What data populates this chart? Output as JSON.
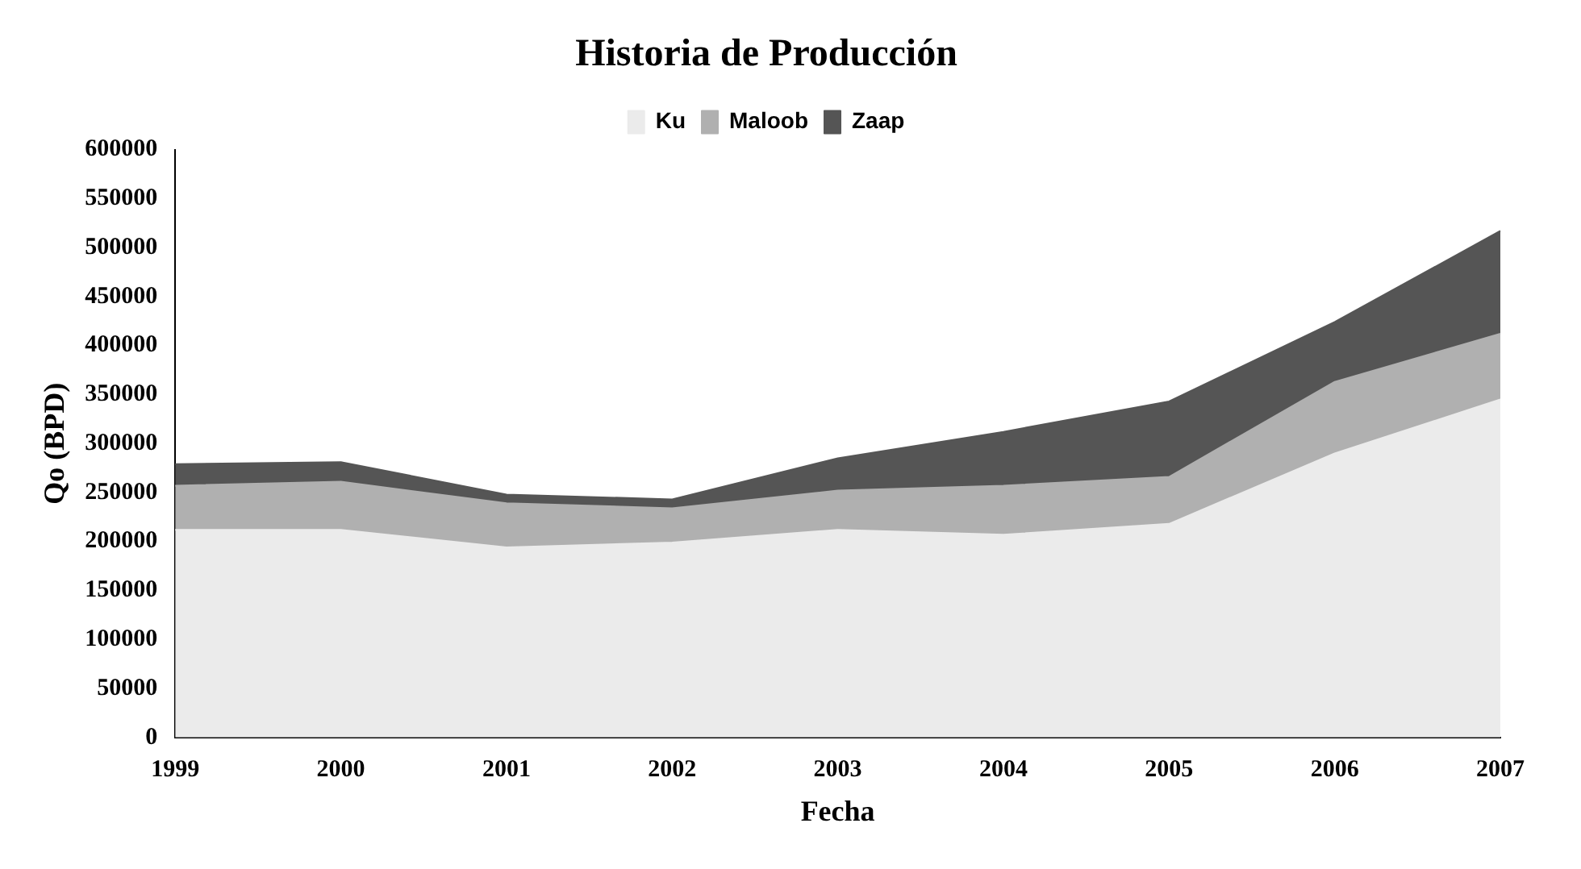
{
  "chart_data": {
    "type": "area",
    "title": "Historia de Producción",
    "xlabel": "Fecha",
    "ylabel": "Qo (BPD)",
    "categories": [
      "1999",
      "2000",
      "2001",
      "2002",
      "2003",
      "2004",
      "2005",
      "2006",
      "2007"
    ],
    "stacked": true,
    "legend": "top",
    "grid": false,
    "ylim": [
      0,
      600000
    ],
    "yticks": [
      0,
      50000,
      100000,
      150000,
      200000,
      250000,
      300000,
      350000,
      400000,
      450000,
      500000,
      550000,
      600000
    ],
    "series": [
      {
        "name": "Ku",
        "color": "#ebebeb",
        "values": [
          212000,
          212000,
          194000,
          199000,
          212000,
          207000,
          218000,
          290000,
          345000
        ]
      },
      {
        "name": "Maloob",
        "color": "#b0b0b0",
        "values": [
          45000,
          49000,
          45000,
          35000,
          40000,
          50000,
          48000,
          73000,
          67000
        ]
      },
      {
        "name": "Zaap",
        "color": "#555555",
        "values": [
          22000,
          20000,
          9000,
          9000,
          33000,
          55000,
          77000,
          61000,
          105000
        ]
      }
    ]
  }
}
